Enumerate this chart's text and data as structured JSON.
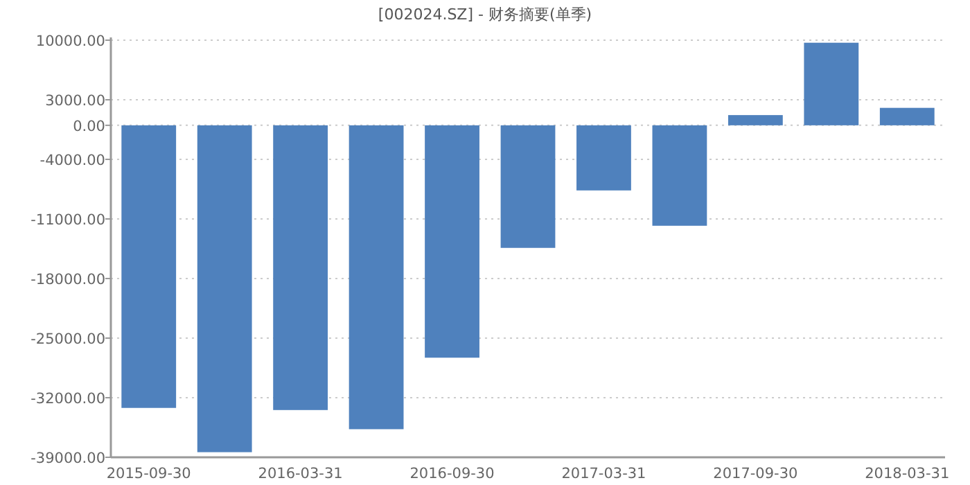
{
  "chart_data": {
    "type": "bar",
    "title": "[002024.SZ] - 财务摘要(单季)",
    "categories": [
      "2015-09-30",
      null,
      "2016-03-31",
      null,
      "2016-09-30",
      null,
      "2017-03-31",
      null,
      "2017-09-30",
      null,
      "2018-03-31"
    ],
    "values": [
      -33200,
      -38400,
      -33450,
      -35700,
      -27300,
      -14400,
      -7650,
      -11800,
      1200,
      9700,
      2050
    ],
    "color": "#4f81bd",
    "ylim": [
      -39000,
      10000
    ],
    "yticks": [
      {
        "value": 10000,
        "label": "10000.00"
      },
      {
        "value": 3000,
        "label": "3000.00"
      },
      {
        "value": 0,
        "label": "0.00"
      },
      {
        "value": -4000,
        "label": "-4000.00"
      },
      {
        "value": -11000,
        "label": "-11000.00"
      },
      {
        "value": -18000,
        "label": "-18000.00"
      },
      {
        "value": -25000,
        "label": "-25000.00"
      },
      {
        "value": -32000,
        "label": "-32000.00"
      },
      {
        "value": -39000,
        "label": "-39000.00"
      }
    ],
    "grid": "y"
  }
}
